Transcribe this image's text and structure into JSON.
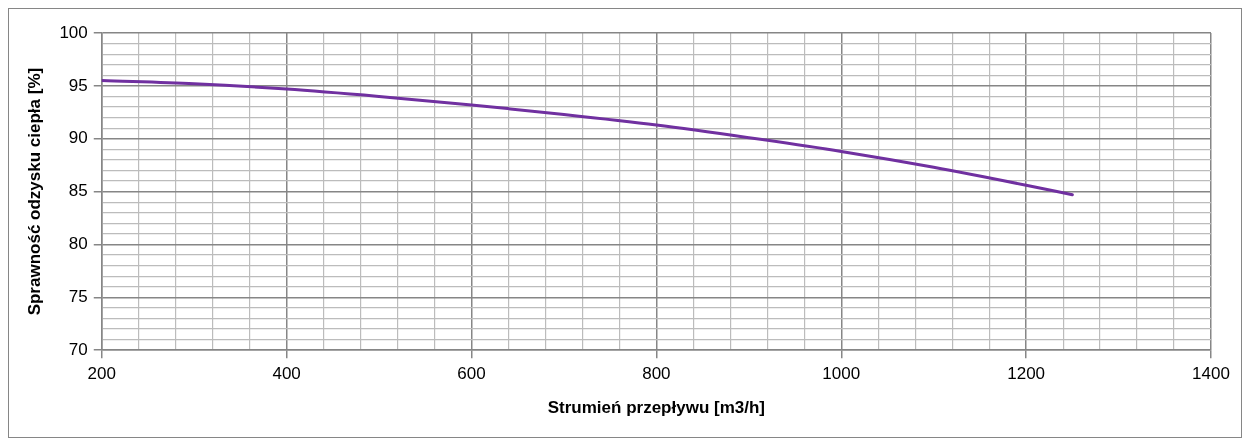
{
  "chart_data": {
    "type": "line",
    "xlabel": "Strumień przepływu [m3/h]",
    "ylabel": "Sprawność odzysku ciepła [%]",
    "x": [
      200,
      300,
      400,
      500,
      600,
      700,
      800,
      900,
      1000,
      1100,
      1200,
      1250
    ],
    "series": [
      {
        "color": "#7030a0",
        "values": [
          95.5,
          95.2,
          94.7,
          94.0,
          93.2,
          92.3,
          91.3,
          90.1,
          88.8,
          87.3,
          85.6,
          84.7
        ]
      }
    ],
    "xlim": [
      200,
      1400
    ],
    "xticks": [
      200,
      {
        "value": 240,
        "label": null
      },
      {
        "value": 280,
        "label": null
      },
      {
        "value": 320,
        "label": null
      },
      {
        "value": 360,
        "label": null
      },
      400,
      {
        "value": 440,
        "label": null
      },
      {
        "value": 480,
        "label": null
      },
      {
        "value": 520,
        "label": null
      },
      {
        "value": 560,
        "label": null
      },
      600,
      {
        "value": 640,
        "label": null
      },
      {
        "value": 680,
        "label": null
      },
      {
        "value": 720,
        "label": null
      },
      {
        "value": 760,
        "label": null
      },
      800,
      {
        "value": 840,
        "label": null
      },
      {
        "value": 880,
        "label": null
      },
      {
        "value": 920,
        "label": null
      },
      {
        "value": 960,
        "label": null
      },
      1000,
      {
        "value": 1040,
        "label": null
      },
      {
        "value": 1080,
        "label": null
      },
      {
        "value": 1120,
        "label": null
      },
      {
        "value": 1160,
        "label": null
      },
      1200,
      {
        "value": 1240,
        "label": null
      },
      {
        "value": 1280,
        "label": null
      },
      {
        "value": 1320,
        "label": null
      },
      {
        "value": 1360,
        "label": null
      },
      1400
    ],
    "ylim": [
      70,
      100
    ],
    "yticks": [
      70,
      {
        "value": 71,
        "label": null
      },
      {
        "value": 72,
        "label": null
      },
      {
        "value": 73,
        "label": null
      },
      {
        "value": 74,
        "label": null
      },
      75,
      {
        "value": 76,
        "label": null
      },
      {
        "value": 77,
        "label": null
      },
      {
        "value": 78,
        "label": null
      },
      {
        "value": 79,
        "label": null
      },
      80,
      {
        "value": 81,
        "label": null
      },
      {
        "value": 82,
        "label": null
      },
      {
        "value": 83,
        "label": null
      },
      {
        "value": 84,
        "label": null
      },
      85,
      {
        "value": 86,
        "label": null
      },
      {
        "value": 87,
        "label": null
      },
      {
        "value": 88,
        "label": null
      },
      {
        "value": 89,
        "label": null
      },
      90,
      {
        "value": 91,
        "label": null
      },
      {
        "value": 92,
        "label": null
      },
      {
        "value": 93,
        "label": null
      },
      {
        "value": 94,
        "label": null
      },
      95,
      {
        "value": 96,
        "label": null
      },
      {
        "value": 97,
        "label": null
      },
      {
        "value": 98,
        "label": null
      },
      {
        "value": 99,
        "label": null
      },
      100
    ],
    "grid": true,
    "legend": false,
    "marker": "none",
    "line_style": "solid"
  }
}
